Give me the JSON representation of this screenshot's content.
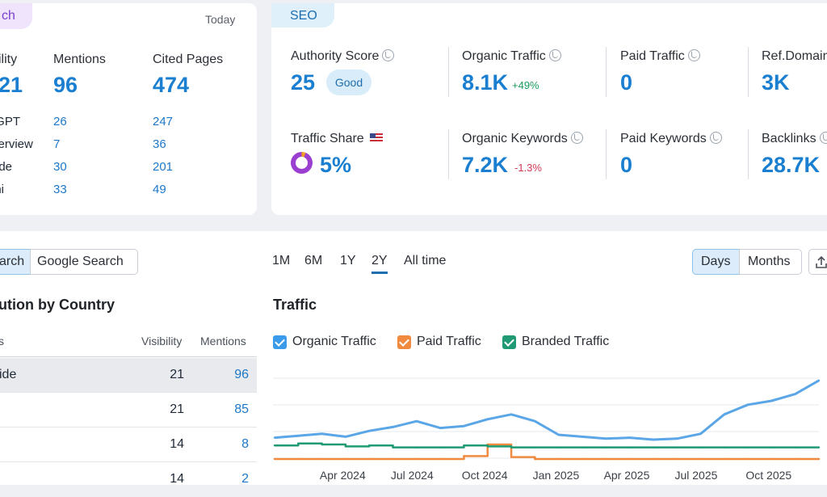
{
  "ai_card": {
    "tab_label": "ch",
    "today": "Today",
    "cols": [
      "ility",
      "Mentions",
      "Cited Pages"
    ],
    "big": [
      "21",
      "96",
      "474"
    ],
    "rows": [
      {
        "label": "tGPT",
        "mentions": "26",
        "cited": "247"
      },
      {
        "label": "verview",
        "mentions": "7",
        "cited": "36"
      },
      {
        "label": "ode",
        "mentions": "30",
        "cited": "201"
      },
      {
        "label": "ini",
        "mentions": "33",
        "cited": "49"
      }
    ]
  },
  "seo_card": {
    "tab_label": "SEO",
    "authority_label": "Authority Score",
    "authority_value": "25",
    "authority_badge": "Good",
    "organic_traffic_label": "Organic Traffic",
    "organic_traffic_value": "8.1K",
    "organic_traffic_change": "+49%",
    "paid_traffic_label": "Paid Traffic",
    "paid_traffic_value": "0",
    "ref_domains_label": "Ref.Domain",
    "ref_domains_value": "3K",
    "traffic_share_label": "Traffic Share",
    "traffic_share_value": "5%",
    "organic_keywords_label": "Organic Keywords",
    "organic_keywords_value": "7.2K",
    "organic_keywords_change": "-1.3%",
    "paid_keywords_label": "Paid Keywords",
    "paid_keywords_value": "0",
    "backlinks_label": "Backlinks",
    "backlinks_value": "28.7K"
  },
  "country_panel": {
    "toggle_ai": "arch",
    "toggle_google": "Google Search",
    "title": "ution by Country",
    "col_first": "s",
    "col_visibility": "Visibility",
    "col_mentions": "Mentions",
    "rows": [
      {
        "name": "ide",
        "visibility": "21",
        "mentions": "96"
      },
      {
        "name": "",
        "visibility": "21",
        "mentions": "85"
      },
      {
        "name": "",
        "visibility": "14",
        "mentions": "8"
      },
      {
        "name": "",
        "visibility": "14",
        "mentions": "2"
      }
    ]
  },
  "traffic_panel": {
    "ranges": [
      "1M",
      "6M",
      "1Y",
      "2Y",
      "All time"
    ],
    "active_range": "2Y",
    "days": "Days",
    "months": "Months",
    "title": "Traffic",
    "legend": [
      "Organic Traffic",
      "Paid Traffic",
      "Branded Traffic"
    ]
  },
  "colors": {
    "organic": "#5aa6e6",
    "paid": "#f08a3e",
    "branded": "#1f9a74",
    "accent": "#1a7fd0"
  },
  "chart_data": {
    "type": "line",
    "x": [
      "2024-01",
      "2024-02",
      "2024-03",
      "2024-04",
      "2024-05",
      "2024-06",
      "2024-07",
      "2024-08",
      "2024-09",
      "2024-10",
      "2024-11",
      "2024-12",
      "2025-01",
      "2025-02",
      "2025-03",
      "2025-04",
      "2025-05",
      "2025-06",
      "2025-07",
      "2025-08",
      "2025-09",
      "2025-10",
      "2025-11",
      "2025-12"
    ],
    "xticks": [
      "Apr 2024",
      "Jul 2024",
      "Oct 2024",
      "Jan 2025",
      "Apr 2025",
      "Jul 2025",
      "Oct 2025"
    ],
    "series": [
      {
        "name": "Organic Traffic",
        "values": [
          2.2,
          2.4,
          2.6,
          2.3,
          2.9,
          3.3,
          3.9,
          3.2,
          3.4,
          4.1,
          4.6,
          3.9,
          2.5,
          2.3,
          2.1,
          2.2,
          2.0,
          2.1,
          2.6,
          4.6,
          5.6,
          6.0,
          6.7,
          8.1
        ]
      },
      {
        "name": "Paid Traffic",
        "values": [
          0,
          0,
          0,
          0,
          0,
          0,
          0,
          0,
          0.3,
          1.5,
          0.2,
          0,
          0,
          0,
          0,
          0,
          0,
          0,
          0,
          0,
          0,
          0,
          0,
          0
        ]
      },
      {
        "name": "Branded Traffic",
        "values": [
          1.4,
          1.6,
          1.5,
          1.3,
          1.4,
          1.2,
          1.2,
          1.2,
          1.4,
          1.3,
          1.2,
          1.2,
          1.2,
          1.2,
          1.2,
          1.2,
          1.2,
          1.2,
          1.2,
          1.2,
          1.2,
          1.2,
          1.2,
          1.2
        ]
      }
    ],
    "ylim": [
      0,
      9
    ],
    "grid": true
  }
}
